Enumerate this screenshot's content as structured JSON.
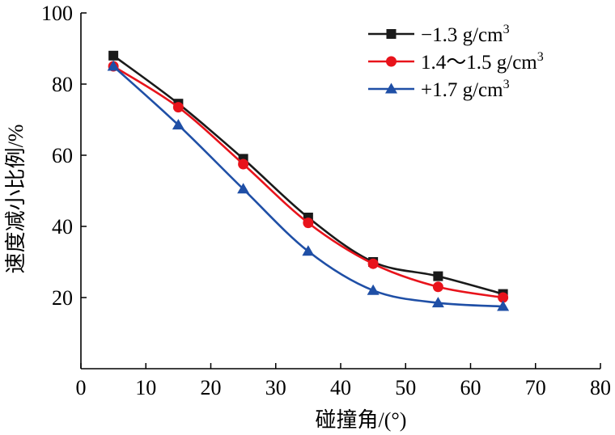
{
  "chart_data": {
    "type": "line",
    "title": "",
    "xlabel": "碰撞角/(°)",
    "ylabel": "速度减小比例/%",
    "xlim": [
      0,
      80
    ],
    "ylim": [
      0,
      100
    ],
    "xticks": [
      "0",
      "10",
      "20",
      "30",
      "40",
      "50",
      "60",
      "70",
      "80"
    ],
    "yticks": [
      "20",
      "40",
      "60",
      "80",
      "100"
    ],
    "grid": false,
    "legend_position": "top-right",
    "x": [
      5,
      15,
      25,
      35,
      45,
      55,
      65
    ],
    "series": [
      {
        "name": "−1.3 g/cm",
        "superscript": "3",
        "color": "#1a1a1a",
        "marker": "square",
        "values": [
          88,
          74.5,
          59,
          42.5,
          30,
          26,
          21
        ]
      },
      {
        "name": "1.4～1.5 g/cm",
        "superscript": "3",
        "color": "#e8131b",
        "marker": "circle",
        "values": [
          85,
          73.5,
          57.5,
          41,
          29.5,
          23,
          20
        ]
      },
      {
        "name": "+1.7 g/cm",
        "superscript": "3",
        "color": "#1f4fa6",
        "marker": "triangle",
        "values": [
          85,
          68.5,
          50.5,
          33,
          22,
          18.5,
          17.5
        ]
      }
    ]
  }
}
